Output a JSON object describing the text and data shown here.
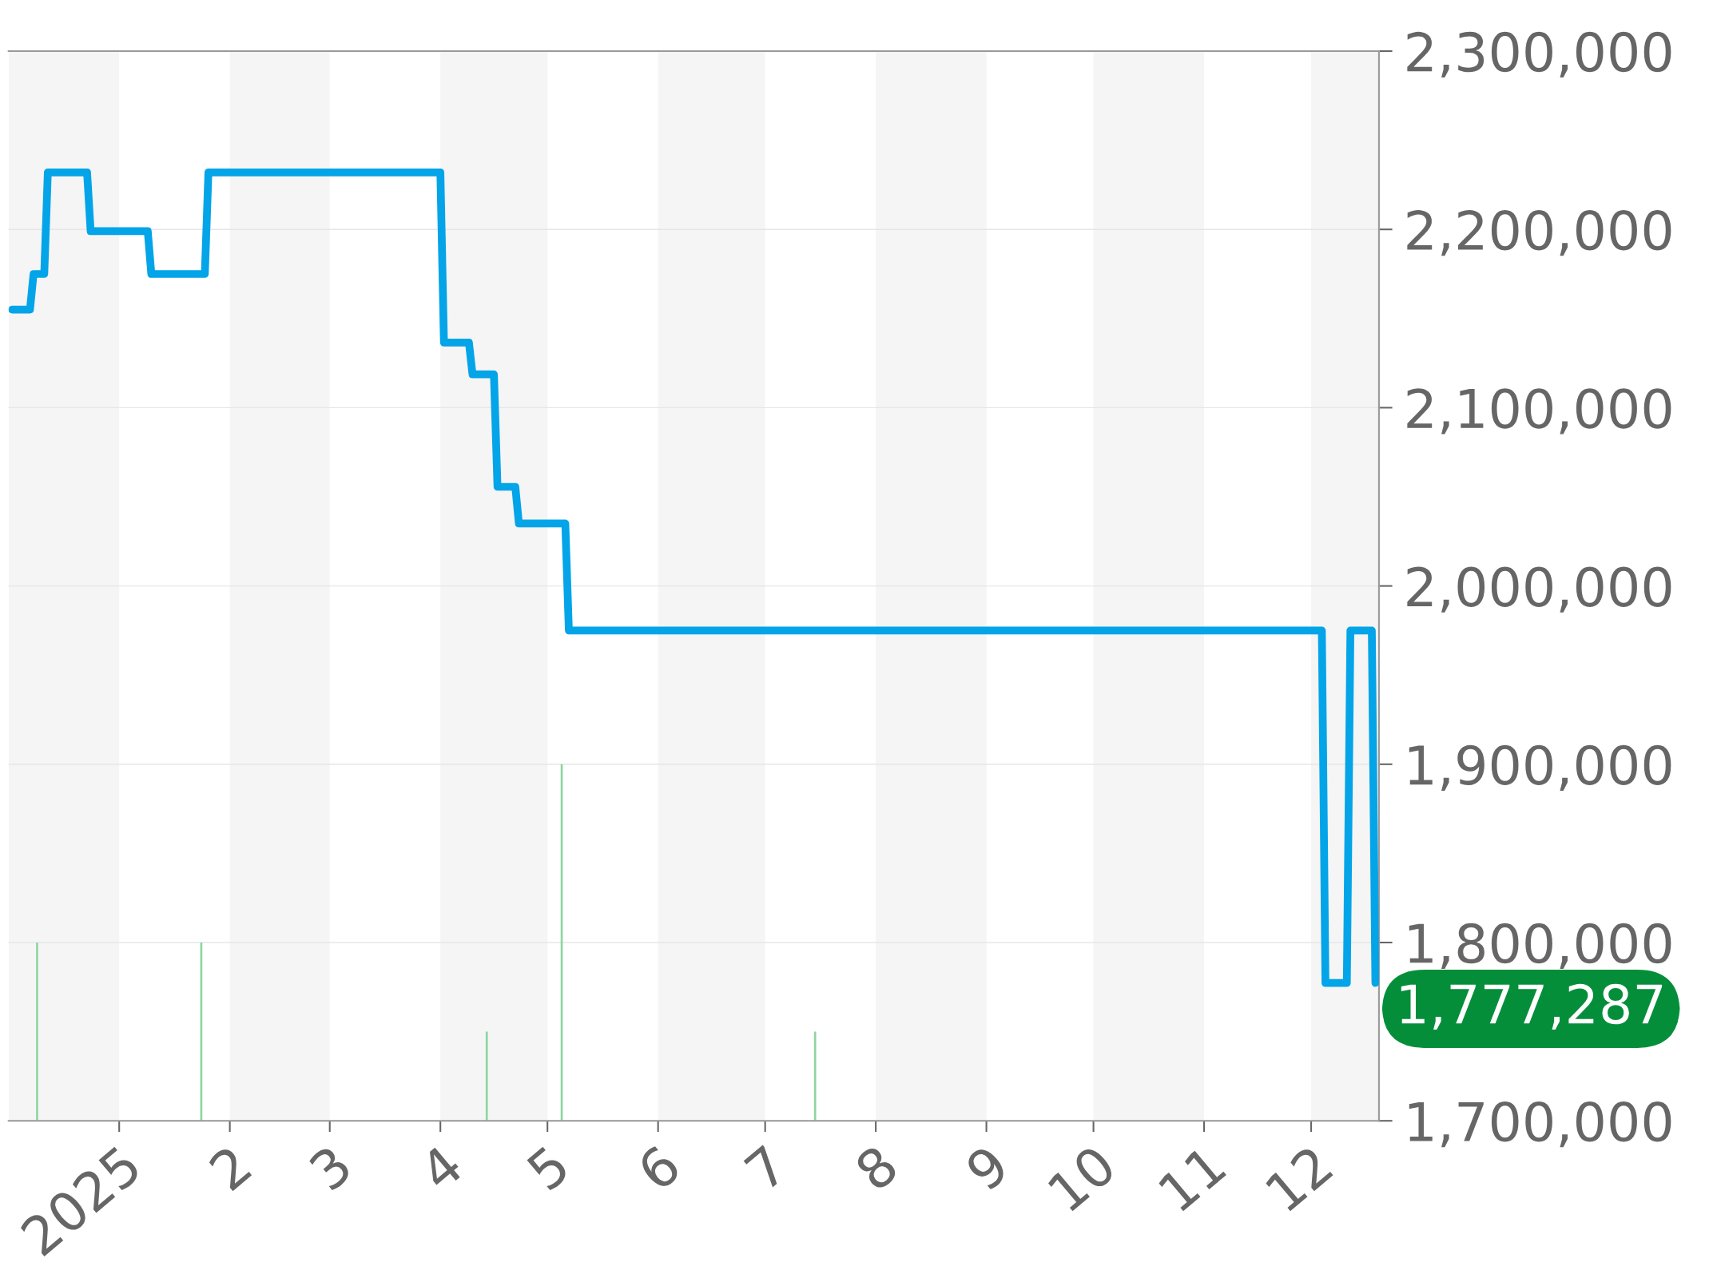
{
  "chart_data": {
    "type": "line",
    "x": [
      "2024-12-02",
      "2024-12-07",
      "2024-12-08",
      "2024-12-11",
      "2024-12-12",
      "2024-12-23",
      "2024-12-24",
      "2025-01-09",
      "2025-01-10",
      "2025-01-25",
      "2025-01-26",
      "2025-04-01",
      "2025-04-02",
      "2025-04-09",
      "2025-04-10",
      "2025-04-16",
      "2025-04-17",
      "2025-04-22",
      "2025-04-23",
      "2025-05-06",
      "2025-05-07",
      "2025-12-04",
      "2025-12-05",
      "2025-12-11",
      "2025-12-12",
      "2025-12-18",
      "2025-12-19"
    ],
    "series": [
      {
        "color": "#03a4e8",
        "values": [
          2155000,
          2155000,
          2175000,
          2175000,
          2232000,
          2232000,
          2199000,
          2199000,
          2175000,
          2175000,
          2232000,
          2232000,
          2136500,
          2136500,
          2118700,
          2118700,
          2055600,
          2055600,
          2035000,
          2035000,
          1975000,
          1975000,
          1777287,
          1777287,
          1975000,
          1975000,
          1777287
        ]
      },
      {
        "type": "bar",
        "color": "#8fd6a0",
        "x": [
          "2024-12-09",
          "2025-01-24",
          "2025-04-14",
          "2025-05-05",
          "2025-07-15"
        ],
        "base": [
          1700000,
          1700000,
          1700000,
          1700000,
          1700000
        ],
        "values": [
          100000,
          100000,
          50000,
          200000,
          50000
        ]
      }
    ],
    "xlim": [
      "2024-12-01",
      "2025-12-20"
    ],
    "xticks": [
      {
        "value": "2025-01-01",
        "label": "2025"
      },
      {
        "value": "2025-02-01",
        "label": "2"
      },
      {
        "value": "2025-03-01",
        "label": "3"
      },
      {
        "value": "2025-04-01",
        "label": "4"
      },
      {
        "value": "2025-05-01",
        "label": "5"
      },
      {
        "value": "2025-06-01",
        "label": "6"
      },
      {
        "value": "2025-07-01",
        "label": "7"
      },
      {
        "value": "2025-08-01",
        "label": "8"
      },
      {
        "value": "2025-09-01",
        "label": "9"
      },
      {
        "value": "2025-10-01",
        "label": "10"
      },
      {
        "value": "2025-11-01",
        "label": "11"
      },
      {
        "value": "2025-12-01",
        "label": "12"
      }
    ],
    "ylim": [
      1700000,
      2300000
    ],
    "yticks": [
      {
        "value": 1700000,
        "label": "1,700,000"
      },
      {
        "value": 1800000,
        "label": "1,800,000"
      },
      {
        "value": 1900000,
        "label": "1,900,000"
      },
      {
        "value": 2000000,
        "label": "2,000,000"
      },
      {
        "value": 2100000,
        "label": "2,100,000"
      },
      {
        "value": 2200000,
        "label": "2,200,000"
      },
      {
        "value": 2300000,
        "label": "2,300,000"
      }
    ],
    "bands": [
      {
        "axis": "x",
        "from": "2024-12-01",
        "to": "2025-01-01",
        "color": "#f5f5f5"
      },
      {
        "axis": "x",
        "from": "2025-02-01",
        "to": "2025-03-01",
        "color": "#f5f5f5"
      },
      {
        "axis": "x",
        "from": "2025-04-01",
        "to": "2025-05-01",
        "color": "#f5f5f5"
      },
      {
        "axis": "x",
        "from": "2025-06-01",
        "to": "2025-07-01",
        "color": "#f5f5f5"
      },
      {
        "axis": "x",
        "from": "2025-08-01",
        "to": "2025-09-01",
        "color": "#f5f5f5"
      },
      {
        "axis": "x",
        "from": "2025-10-01",
        "to": "2025-11-01",
        "color": "#f5f5f5"
      },
      {
        "axis": "x",
        "from": "2025-12-01",
        "to": "2025-12-20",
        "color": "#f5f5f5"
      }
    ],
    "annotations": [
      {
        "text": "1,777,287",
        "x": "2025-12-19",
        "y": 1777287
      }
    ],
    "grid": "y",
    "marker": "none",
    "line_style": "solid"
  }
}
